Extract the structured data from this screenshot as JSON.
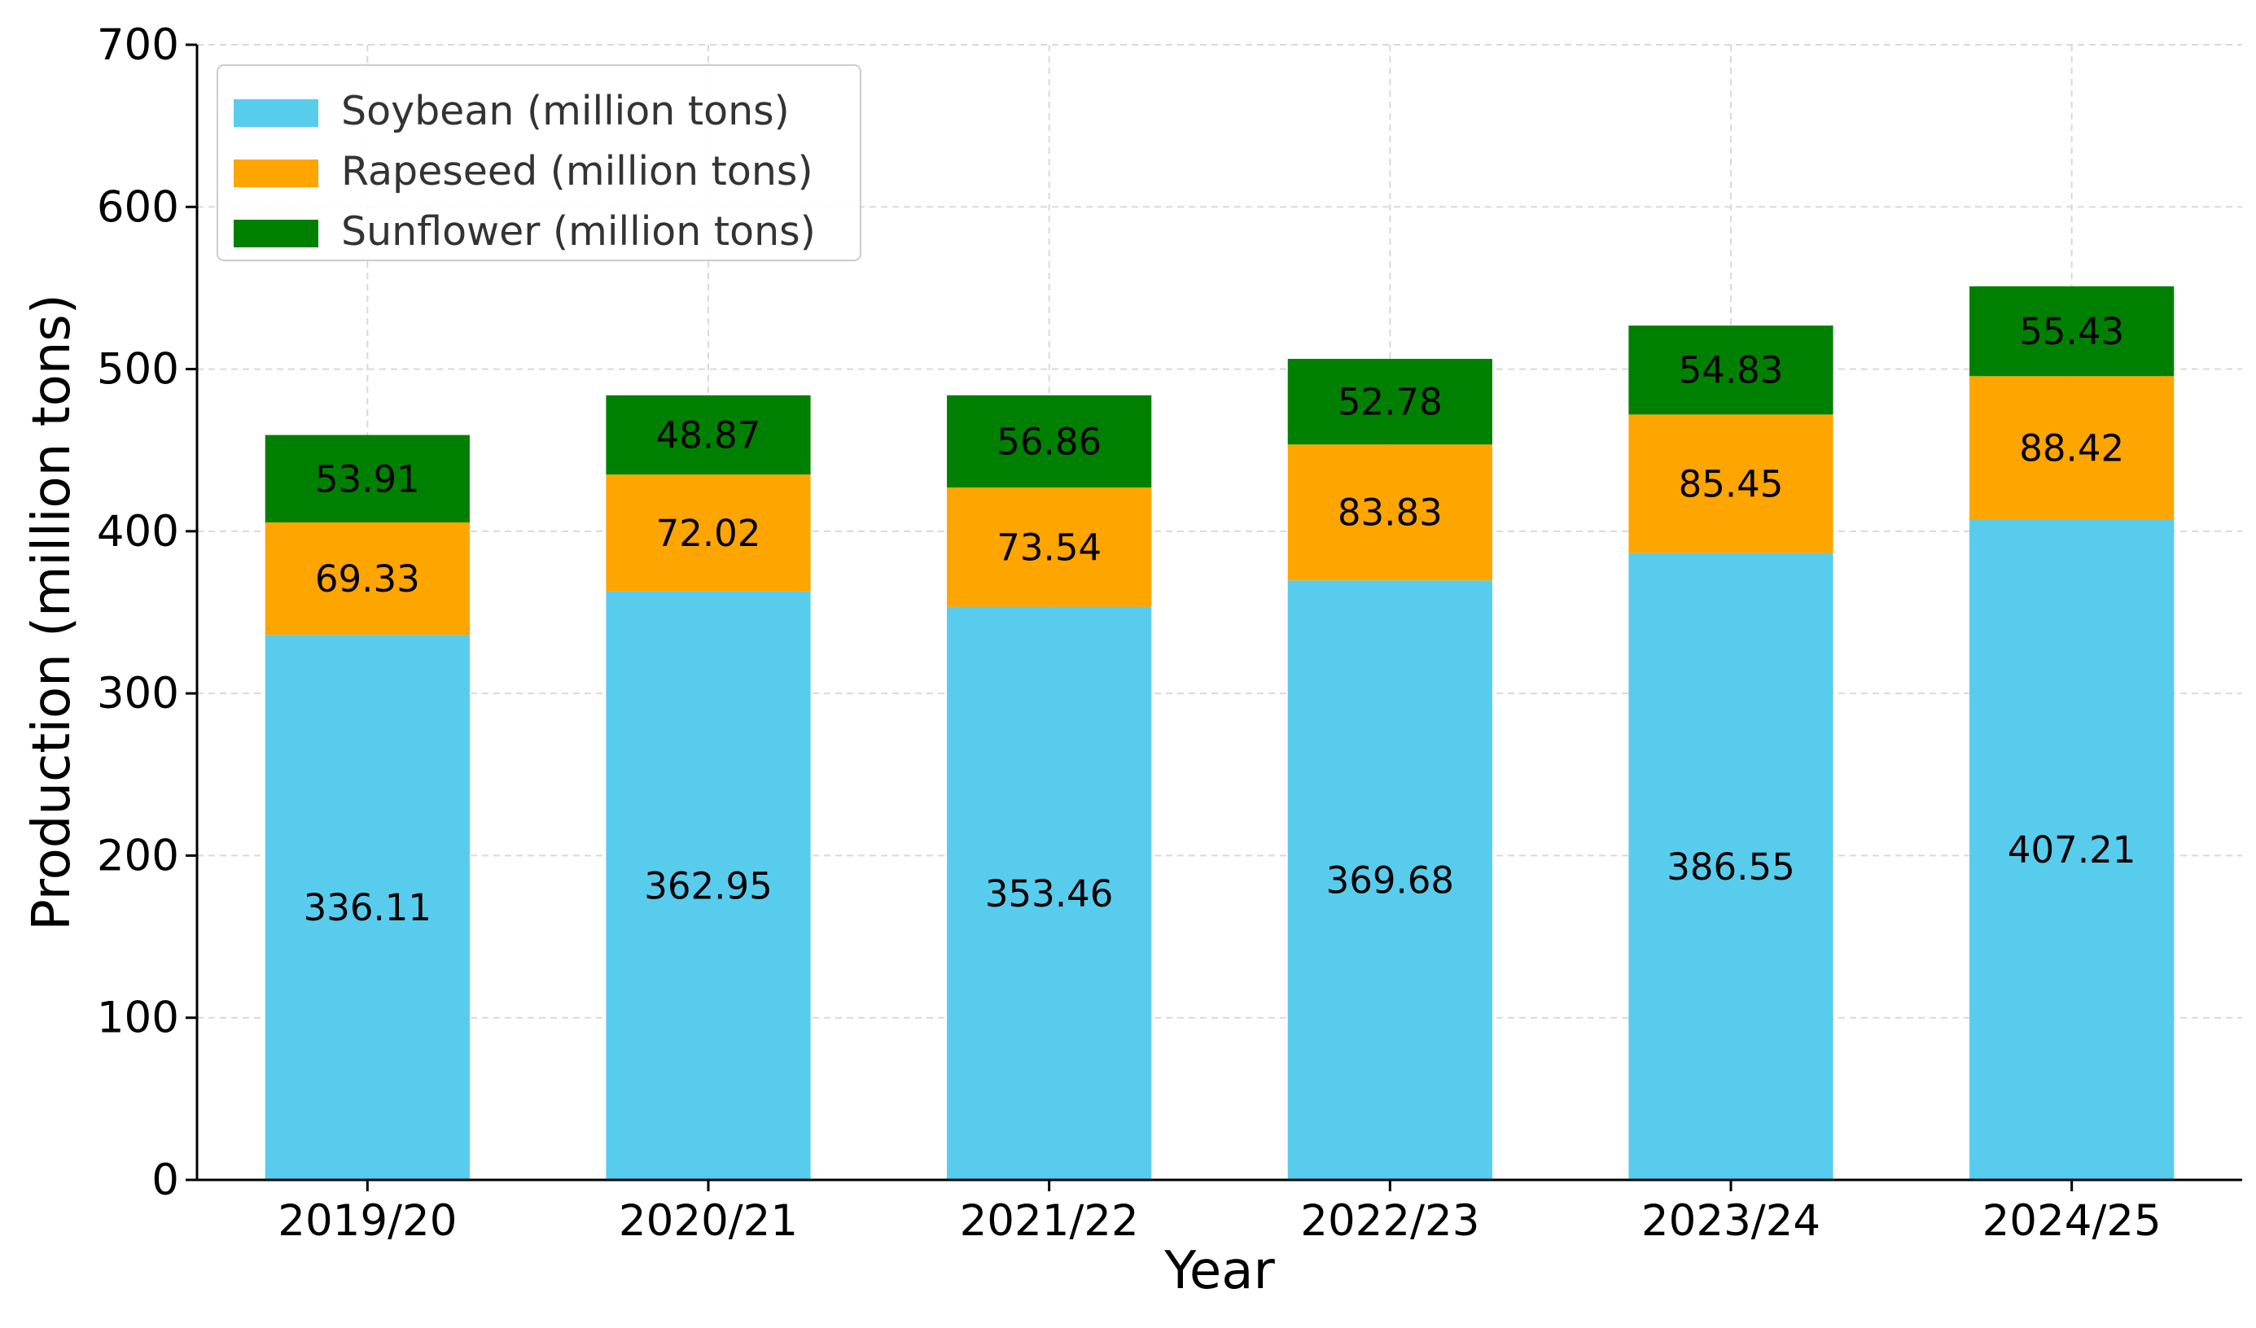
{
  "chart_data": {
    "type": "bar",
    "stacked": true,
    "title": "",
    "xlabel": "Year",
    "ylabel": "Production (million tons)",
    "ylim": [
      0,
      700
    ],
    "yticks": [
      0,
      100,
      200,
      300,
      400,
      500,
      600,
      700
    ],
    "grid": true,
    "legend_position": "top-left",
    "categories": [
      "2019/20",
      "2020/21",
      "2021/22",
      "2022/23",
      "2023/24",
      "2024/25"
    ],
    "series": [
      {
        "name": "Soybean (million tons)",
        "color": "#58CCED",
        "values": [
          336.11,
          362.95,
          353.46,
          369.68,
          386.55,
          407.21
        ]
      },
      {
        "name": "Rapeseed (million tons)",
        "color": "#FFA500",
        "values": [
          69.33,
          72.02,
          73.54,
          83.83,
          85.45,
          88.42
        ]
      },
      {
        "name": "Sunflower (million tons)",
        "color": "#008000",
        "values": [
          53.91,
          48.87,
          56.86,
          52.78,
          54.83,
          55.43
        ]
      }
    ]
  }
}
